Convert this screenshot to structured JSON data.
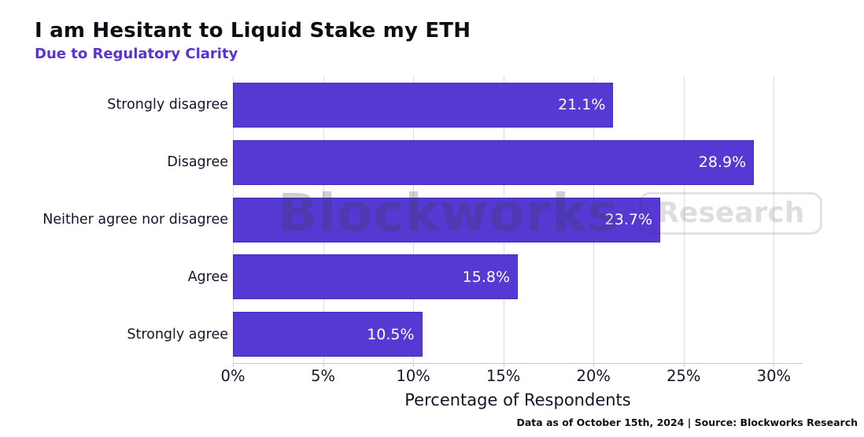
{
  "header": {
    "title": "I am Hesitant to Liquid Stake my ETH",
    "subtitle": "Due to Regulatory Clarity"
  },
  "watermark": {
    "brand": "Blockworks",
    "suffix": "Research"
  },
  "footer": {
    "note": "Data as of October 15th, 2024 | Source: Blockworks Research"
  },
  "colors": {
    "bar_fill": "#5539d2",
    "subtitle_accent": "#5b32d6",
    "grid": "#dcdce0",
    "axis_text": "#15152a",
    "value_label": "#ffffff"
  },
  "chart_data": {
    "type": "bar",
    "orientation": "horizontal",
    "title": "I am Hesitant to Liquid Stake my ETH",
    "subtitle": "Due to Regulatory Clarity",
    "categories": [
      "Strongly disagree",
      "Disagree",
      "Neither agree nor disagree",
      "Agree",
      "Strongly agree"
    ],
    "values": [
      21.1,
      28.9,
      23.7,
      15.8,
      10.5
    ],
    "value_labels": [
      "21.1%",
      "28.9%",
      "23.7%",
      "15.8%",
      "10.5%"
    ],
    "xlabel": "Percentage of Respondents",
    "ylabel": "",
    "x_ticks": [
      "0%",
      "5%",
      "10%",
      "15%",
      "20%",
      "25%",
      "30%"
    ],
    "x_tick_values": [
      0,
      5,
      10,
      15,
      20,
      25,
      30
    ],
    "xlim": [
      0,
      31.6
    ],
    "grid": true,
    "legend": false
  }
}
